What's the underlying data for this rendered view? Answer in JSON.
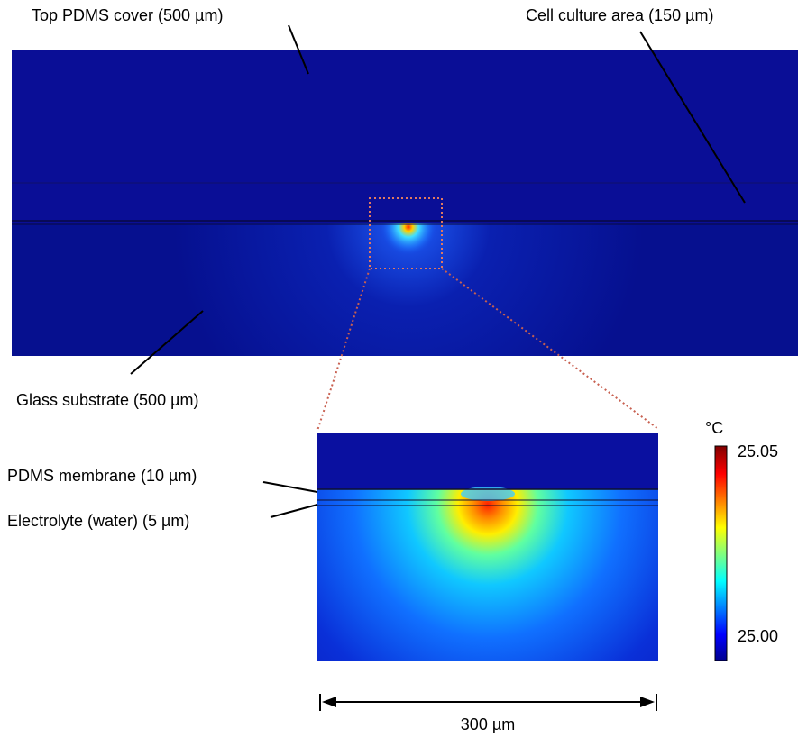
{
  "labels": {
    "top_cover": "Top PDMS cover (500 µm)",
    "cell_culture": "Cell culture area (150 µm)",
    "glass_substrate": "Glass substrate (500 µm)",
    "membrane": "PDMS membrane (10 µm)",
    "electrolyte": "Electrolyte (water) (5 µm)"
  },
  "colorbar": {
    "unit": "°C",
    "max": "25.05",
    "min": "25.00"
  },
  "scale_bar": {
    "label": "300 µm"
  }
}
